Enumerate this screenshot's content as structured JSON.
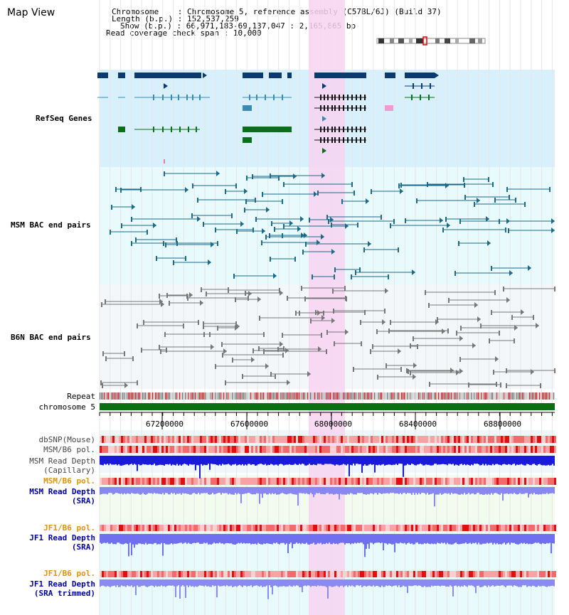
{
  "page": {
    "title": "Map View"
  },
  "info": {
    "chromosome_label": "Chromosome",
    "chromosome_value": "Chromosome 5, reference assembly (C57BL/6J) (Build 37)",
    "length_label": "Length (b.p.)",
    "length_value": "152,537,259",
    "show_label": "Show (b.p.)",
    "show_value": "66,971,183-69,137,047 : 2,165,865 bp",
    "coverage_label": "Read coverage check span",
    "coverage_value": "10,000"
  },
  "tracks": {
    "refseq": "RefSeq Genes",
    "msm_bac": "MSM BAC end pairs",
    "b6n_bac": "B6N BAC end pairs",
    "repeat": "Repeat",
    "chromosome": "chromosome 5",
    "dbsnp": "dbSNP(Mouse)",
    "msm_b6_pol_1": "MSM/B6 pol.",
    "msm_read_depth_cap_1": "MSM Read Depth",
    "msm_read_depth_cap_2": "(Capillary)",
    "msm_b6_pol_2": "MSM/B6 pol.",
    "msm_read_depth_sra_1": "MSM Read Depth",
    "msm_read_depth_sra_2": "(SRA)",
    "jf1_b6_pol_1": "JF1/B6 pol.",
    "jf1_read_depth_sra_1": "JF1 Read Depth",
    "jf1_read_depth_sra_2": "(SRA)",
    "jf1_b6_pol_2": "JF1/B6 pol.",
    "jf1_read_depth_trim_1": "JF1 Read Depth",
    "jf1_read_depth_trim_2": "(SRA trimmed)"
  },
  "axis": {
    "ticks": [
      "67200000",
      "67600000",
      "68000000",
      "68400000",
      "68800000"
    ]
  },
  "colors": {
    "refseq_label": "#000099",
    "msm_label": "#006680",
    "b6n_label": "#555555",
    "pol_label": "#e59400",
    "depth_label": "#0000aa",
    "highlight": "#f7d4f1",
    "refseq_bg": "#d8f0fb",
    "msm_bg": "#e8fafc",
    "b6n_bg": "#f3f7fa"
  }
}
